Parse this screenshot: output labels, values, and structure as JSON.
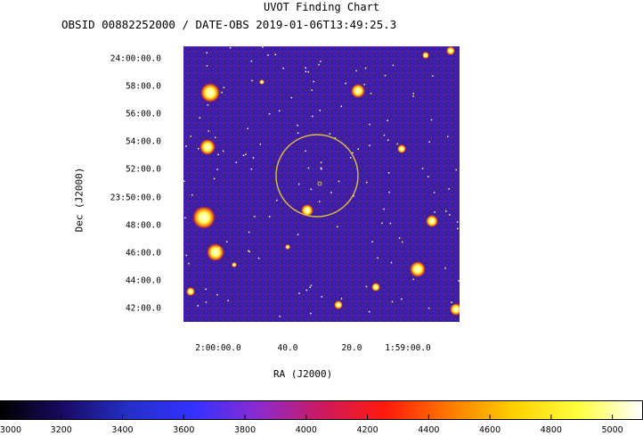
{
  "chart_data": {
    "type": "heatmap",
    "title": "UVOT Finding Chart",
    "subtitle": "OBSID 00882252000 / DATE-OBS 2019-01-06T13:49:25.3",
    "xlabel": "RA (J2000)",
    "ylabel": "Dec (J2000)",
    "x_ticks": [
      "2:00:00.0",
      "40.0",
      "20.0",
      "1:59:00.0"
    ],
    "y_ticks": [
      "24:00:00.0",
      "58:00.0",
      "56:00.0",
      "54:00.0",
      "52:00.0",
      "23:50:00.0",
      "48:00.0",
      "46:00.0",
      "44:00.0",
      "42:00.0"
    ],
    "colorbar_ticks": [
      "3000",
      "3200",
      "3400",
      "3600",
      "3800",
      "4000",
      "4200",
      "4400",
      "4600",
      "4800",
      "5000"
    ],
    "colorbar_range": [
      3000,
      5100
    ],
    "colormap": [
      "#000000",
      "#1a0a66",
      "#2430c8",
      "#3232ff",
      "#8a2bd0",
      "#cc1a60",
      "#ff1a0a",
      "#ff7a00",
      "#ffd000",
      "#ffff40",
      "#ffffff"
    ],
    "background_color": "#3a1fa3",
    "region_circle_color": "#e0c040"
  }
}
